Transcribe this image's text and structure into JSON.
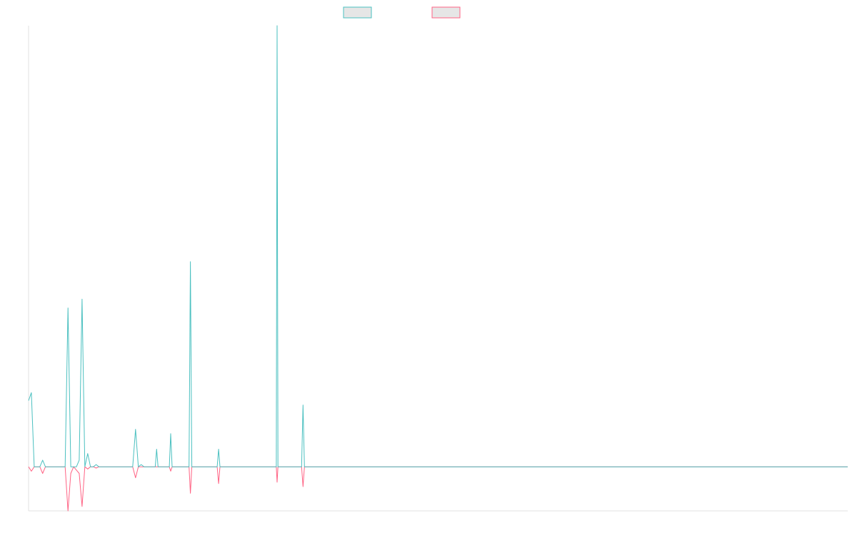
{
  "chart_data": {
    "type": "line",
    "title": "",
    "xlabel": "",
    "ylabel": "",
    "grid": false,
    "legend_placement": "top-center",
    "xlim": [
      0,
      291
    ],
    "ylim": [
      -100,
      1000
    ],
    "colors": {
      "teal": "#4bc0c0",
      "pink": "#ff6384",
      "axis": "#e0e0e0",
      "legend_fill": "#e6e6e6"
    },
    "series": [
      {
        "color": "#4bc0c0",
        "points": [
          [
            0,
            150
          ],
          [
            1,
            168
          ],
          [
            2,
            0
          ],
          [
            4,
            0
          ],
          [
            5,
            15
          ],
          [
            6,
            0
          ],
          [
            10,
            0
          ],
          [
            13,
            0
          ],
          [
            14,
            360
          ],
          [
            15,
            0
          ],
          [
            16,
            0
          ],
          [
            17,
            0
          ],
          [
            18,
            15
          ],
          [
            19,
            380
          ],
          [
            20,
            0
          ],
          [
            21,
            30
          ],
          [
            22,
            0
          ],
          [
            23,
            0
          ],
          [
            24,
            5
          ],
          [
            25,
            0
          ],
          [
            37,
            0
          ],
          [
            38,
            85
          ],
          [
            39,
            0
          ],
          [
            40,
            5
          ],
          [
            41,
            0
          ],
          [
            45,
            0
          ],
          [
            45.5,
            40
          ],
          [
            46,
            0
          ],
          [
            50,
            0
          ],
          [
            50.5,
            75
          ],
          [
            51,
            0
          ],
          [
            57,
            0
          ],
          [
            57.5,
            465
          ],
          [
            58,
            0
          ],
          [
            67,
            0
          ],
          [
            67.5,
            40
          ],
          [
            68,
            0
          ],
          [
            88,
            0
          ],
          [
            88.3,
            1000
          ],
          [
            88.6,
            0
          ],
          [
            97,
            0
          ],
          [
            97.5,
            140
          ],
          [
            98,
            0
          ],
          [
            291,
            0
          ]
        ]
      },
      {
        "color": "#ff6384",
        "points": [
          [
            0,
            0
          ],
          [
            1,
            -10
          ],
          [
            2,
            0
          ],
          [
            4,
            0
          ],
          [
            5,
            -15
          ],
          [
            6,
            0
          ],
          [
            13,
            0
          ],
          [
            14,
            -100
          ],
          [
            15,
            -15
          ],
          [
            16,
            0
          ],
          [
            18,
            -15
          ],
          [
            19,
            -90
          ],
          [
            20,
            0
          ],
          [
            21,
            -5
          ],
          [
            22,
            0
          ],
          [
            23,
            0
          ],
          [
            24,
            -3
          ],
          [
            25,
            0
          ],
          [
            37,
            0
          ],
          [
            38,
            -25
          ],
          [
            39,
            0
          ],
          [
            40,
            0
          ],
          [
            50,
            0
          ],
          [
            50.5,
            -10
          ],
          [
            51,
            0
          ],
          [
            57,
            0
          ],
          [
            57.5,
            -60
          ],
          [
            58,
            0
          ],
          [
            67,
            0
          ],
          [
            67.5,
            -38
          ],
          [
            68,
            0
          ],
          [
            88,
            0
          ],
          [
            88.3,
            -35
          ],
          [
            88.6,
            0
          ],
          [
            97,
            0
          ],
          [
            97.5,
            -45
          ],
          [
            98,
            0
          ],
          [
            291,
            0
          ]
        ]
      }
    ]
  }
}
